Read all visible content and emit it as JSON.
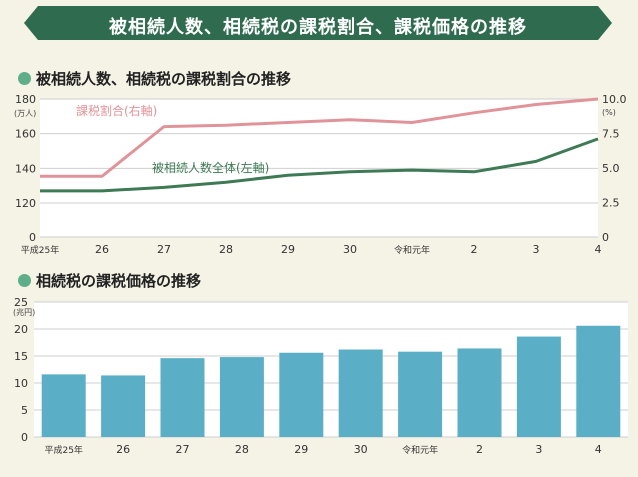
{
  "banner_title": "被相続人数、相続税の課税割合、課税価格の推移",
  "sections": {
    "top_title": "被相続人数、相続税の課税割合の推移",
    "bottom_title": "相続税の課税価格の推移"
  },
  "colors": {
    "banner": "#2f6b4f",
    "ratio_line": "#e0949a",
    "heirs_line": "#3e7a55",
    "bar": "#5aafc6",
    "background": "#f5f2e6"
  },
  "chart_data": [
    {
      "type": "line",
      "title": "被相続人数、相続税の課税割合の推移",
      "categories": [
        "平成25年",
        "26",
        "27",
        "28",
        "29",
        "30",
        "令和元年",
        "2",
        "3",
        "4"
      ],
      "left_axis": {
        "unit": "(万人)",
        "ticks": [
          "0",
          "120",
          "140",
          "160",
          "180"
        ],
        "ylim": [
          0,
          180
        ]
      },
      "right_axis": {
        "unit": "(%)",
        "ticks": [
          "0",
          "2.5",
          "5.0",
          "7.5",
          "10.0"
        ],
        "ylim": [
          0,
          10.0
        ]
      },
      "series": [
        {
          "name": "課税割合(右軸)",
          "axis": "right",
          "values": [
            4.4,
            4.4,
            8.0,
            8.1,
            8.3,
            8.5,
            8.3,
            9.0,
            9.6,
            10.0
          ]
        },
        {
          "name": "被相続人数全体(左軸)",
          "axis": "left",
          "values": [
            127,
            127,
            129,
            132,
            136,
            138,
            139,
            138,
            144,
            157
          ]
        }
      ],
      "grid": true
    },
    {
      "type": "bar",
      "title": "相続税の課税価格の推移",
      "categories": [
        "平成25年",
        "26",
        "27",
        "28",
        "29",
        "30",
        "令和元年",
        "2",
        "3",
        "4"
      ],
      "unit": "(兆円)",
      "ticks": [
        "0",
        "5",
        "10",
        "15",
        "20",
        "25"
      ],
      "ylim": [
        0,
        25
      ],
      "values": [
        11.6,
        11.4,
        14.6,
        14.8,
        15.6,
        16.2,
        15.8,
        16.4,
        18.6,
        20.6
      ],
      "grid": true
    }
  ]
}
